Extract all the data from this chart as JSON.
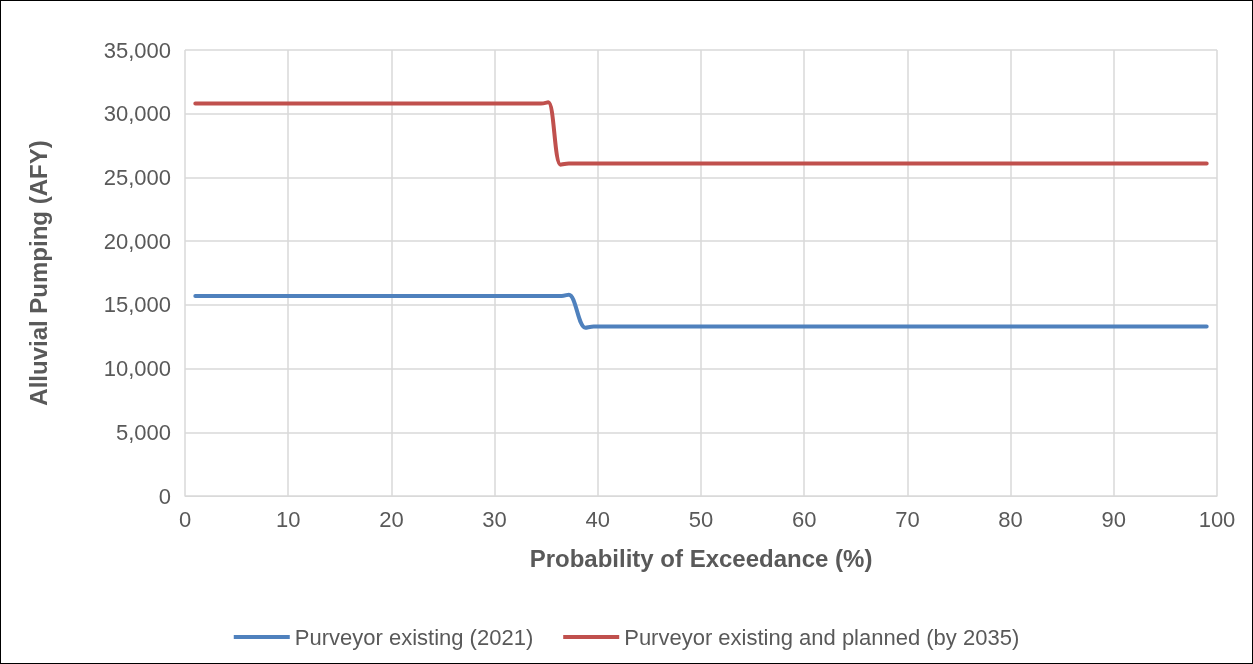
{
  "chart_data": {
    "type": "line",
    "xlabel": "Probability of Exceedance (%)",
    "ylabel": "Alluvial Pumping (AFY)",
    "series": [
      {
        "name": "Purveyor existing (2021)",
        "color": "#4f81bd",
        "x": [
          1,
          10,
          20,
          30,
          36.5,
          37.2,
          38.8,
          39.6,
          50,
          60,
          70,
          80,
          90,
          99
        ],
        "values": [
          15700,
          15700,
          15700,
          15700,
          15700,
          15800,
          13200,
          13300,
          13300,
          13300,
          13300,
          13300,
          13300,
          13300
        ]
      },
      {
        "name": "Purveyor existing and planned (by 2035)",
        "color": "#c0504d",
        "x": [
          1,
          10,
          20,
          30,
          34.5,
          35.2,
          36.4,
          37.2,
          40,
          50,
          60,
          70,
          80,
          90,
          99
        ],
        "values": [
          30800,
          30800,
          30800,
          30800,
          30800,
          30900,
          26000,
          26100,
          26100,
          26100,
          26100,
          26100,
          26100,
          26100,
          26100
        ]
      }
    ],
    "xlim": [
      0,
      100
    ],
    "xticks": [
      0,
      10,
      20,
      30,
      40,
      50,
      60,
      70,
      80,
      90,
      100
    ],
    "ylim": [
      0,
      35000
    ],
    "yticks": [
      0,
      {
        "value": 5000,
        "label": "5,000"
      },
      {
        "value": 10000,
        "label": "10,000"
      },
      {
        "value": 15000,
        "label": "15,000"
      },
      {
        "value": 20000,
        "label": "20,000"
      },
      {
        "value": 25000,
        "label": "25,000"
      },
      {
        "value": 30000,
        "label": "30,000"
      },
      {
        "value": 35000,
        "label": "35,000"
      }
    ],
    "grid": true,
    "legend": "bottom",
    "marker": "none",
    "line_style": "solid"
  }
}
